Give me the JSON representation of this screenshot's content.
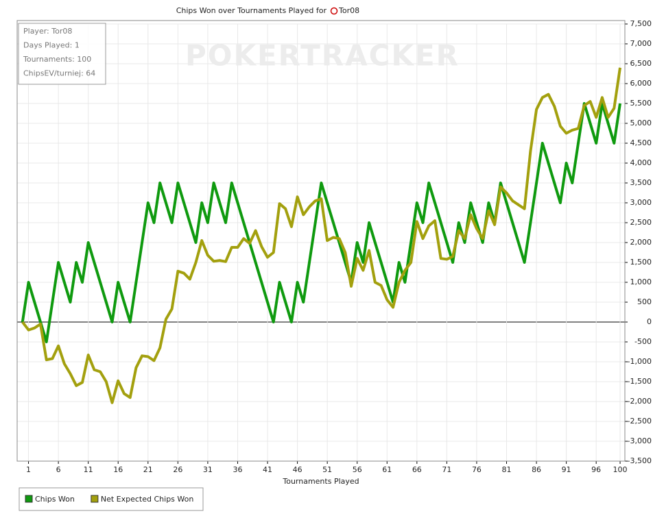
{
  "chart_data": {
    "type": "line",
    "title": "Chips Won over Tournaments Played for",
    "player": "Tor08",
    "x_label": "Tournaments Played",
    "x": [
      0,
      1,
      2,
      3,
      4,
      5,
      6,
      7,
      8,
      9,
      10,
      11,
      12,
      13,
      14,
      15,
      16,
      17,
      18,
      19,
      20,
      21,
      22,
      23,
      24,
      25,
      26,
      27,
      28,
      29,
      30,
      31,
      32,
      33,
      34,
      35,
      36,
      37,
      38,
      39,
      40,
      41,
      42,
      43,
      44,
      45,
      46,
      47,
      48,
      49,
      50,
      51,
      52,
      53,
      54,
      55,
      56,
      57,
      58,
      59,
      60,
      61,
      62,
      63,
      64,
      65,
      66,
      67,
      68,
      69,
      70,
      71,
      72,
      73,
      74,
      75,
      76,
      77,
      78,
      79,
      80,
      81,
      82,
      83,
      84,
      85,
      86,
      87,
      88,
      89,
      90,
      91,
      92,
      93,
      94,
      95,
      96,
      97,
      98,
      99,
      100
    ],
    "series": [
      {
        "name": "Chips Won",
        "color": "#0f9a0f",
        "values": [
          0,
          1000,
          500,
          0,
          -500,
          500,
          1500,
          1000,
          500,
          1500,
          1000,
          2000,
          1500,
          1000,
          500,
          0,
          1000,
          500,
          0,
          1000,
          2000,
          3000,
          2500,
          3500,
          3000,
          2500,
          3500,
          3000,
          2500,
          2000,
          3000,
          2500,
          3500,
          3000,
          2500,
          3500,
          3000,
          2500,
          2000,
          1500,
          1000,
          500,
          0,
          1000,
          500,
          0,
          1000,
          500,
          1500,
          2500,
          3500,
          3000,
          2500,
          2000,
          1500,
          1000,
          2000,
          1500,
          2500,
          2000,
          1500,
          1000,
          500,
          1500,
          1000,
          2000,
          3000,
          2500,
          3500,
          3000,
          2500,
          2000,
          1500,
          2500,
          2000,
          3000,
          2500,
          2000,
          3000,
          2500,
          3500,
          3000,
          2500,
          2000,
          1500,
          2500,
          3500,
          4500,
          4000,
          3500,
          3000,
          4000,
          3500,
          4500,
          5500,
          5000,
          4500,
          5500,
          5000,
          4500,
          5500
        ]
      },
      {
        "name": "Net Expected Chips Won",
        "color": "#a3a00e",
        "values": [
          0,
          -200,
          -150,
          -50,
          -950,
          -920,
          -600,
          -1050,
          -1300,
          -1600,
          -1520,
          -830,
          -1200,
          -1250,
          -1500,
          -2030,
          -1480,
          -1800,
          -1900,
          -1150,
          -850,
          -870,
          -970,
          -650,
          70,
          330,
          1280,
          1230,
          1080,
          1500,
          2050,
          1680,
          1530,
          1550,
          1520,
          1880,
          1880,
          2100,
          1980,
          2300,
          1900,
          1630,
          1750,
          2980,
          2850,
          2400,
          3150,
          2700,
          2900,
          3050,
          3100,
          2050,
          2130,
          2100,
          1750,
          900,
          1600,
          1300,
          1800,
          1000,
          920,
          560,
          370,
          1000,
          1300,
          1500,
          2530,
          2100,
          2420,
          2550,
          1600,
          1580,
          1650,
          2300,
          2100,
          2700,
          2350,
          2100,
          2800,
          2450,
          3400,
          3250,
          3050,
          2950,
          2850,
          4300,
          5350,
          5650,
          5730,
          5430,
          4930,
          4750,
          4830,
          4870,
          5450,
          5550,
          5150,
          5650,
          5150,
          5380,
          6400
        ]
      }
    ],
    "xlim": [
      -0.9,
      100.8
    ],
    "xticks": [
      1,
      6,
      11,
      16,
      21,
      26,
      31,
      36,
      41,
      46,
      51,
      56,
      61,
      66,
      71,
      76,
      81,
      86,
      91,
      96,
      100
    ],
    "ylim": [
      -3500,
      7500
    ],
    "yticks": [
      {
        "value": -3500,
        "label": "-3,500"
      },
      {
        "value": -3000,
        "label": "-3,000"
      },
      {
        "value": -2500,
        "label": "-2,500"
      },
      {
        "value": -2000,
        "label": "-2,000"
      },
      {
        "value": -1500,
        "label": "-1,500"
      },
      {
        "value": -1000,
        "label": "-1,000"
      },
      -500,
      0,
      500,
      {
        "value": 1000,
        "label": "1,000"
      },
      {
        "value": 1500,
        "label": "1,500"
      },
      {
        "value": 2000,
        "label": "2,000"
      },
      {
        "value": 2500,
        "label": "2,500"
      },
      {
        "value": 3000,
        "label": "3,000"
      },
      {
        "value": 3500,
        "label": "3,500"
      },
      {
        "value": 4000,
        "label": "4,000"
      },
      {
        "value": 4500,
        "label": "4,500"
      },
      {
        "value": 5000,
        "label": "5,000"
      },
      {
        "value": 5500,
        "label": "5,500"
      },
      {
        "value": 6000,
        "label": "6,000"
      },
      {
        "value": 6500,
        "label": "6,500"
      },
      {
        "value": 7000,
        "label": "7,000"
      },
      {
        "value": 7500,
        "label": "7,500"
      }
    ],
    "grid": true,
    "legend": "bottom-left"
  },
  "info_box": [
    "Player: Tor08",
    "Days Played: 1",
    "Tournaments: 100",
    "ChipsEV/turniej: 64"
  ],
  "watermark": "POKERTRACKER"
}
